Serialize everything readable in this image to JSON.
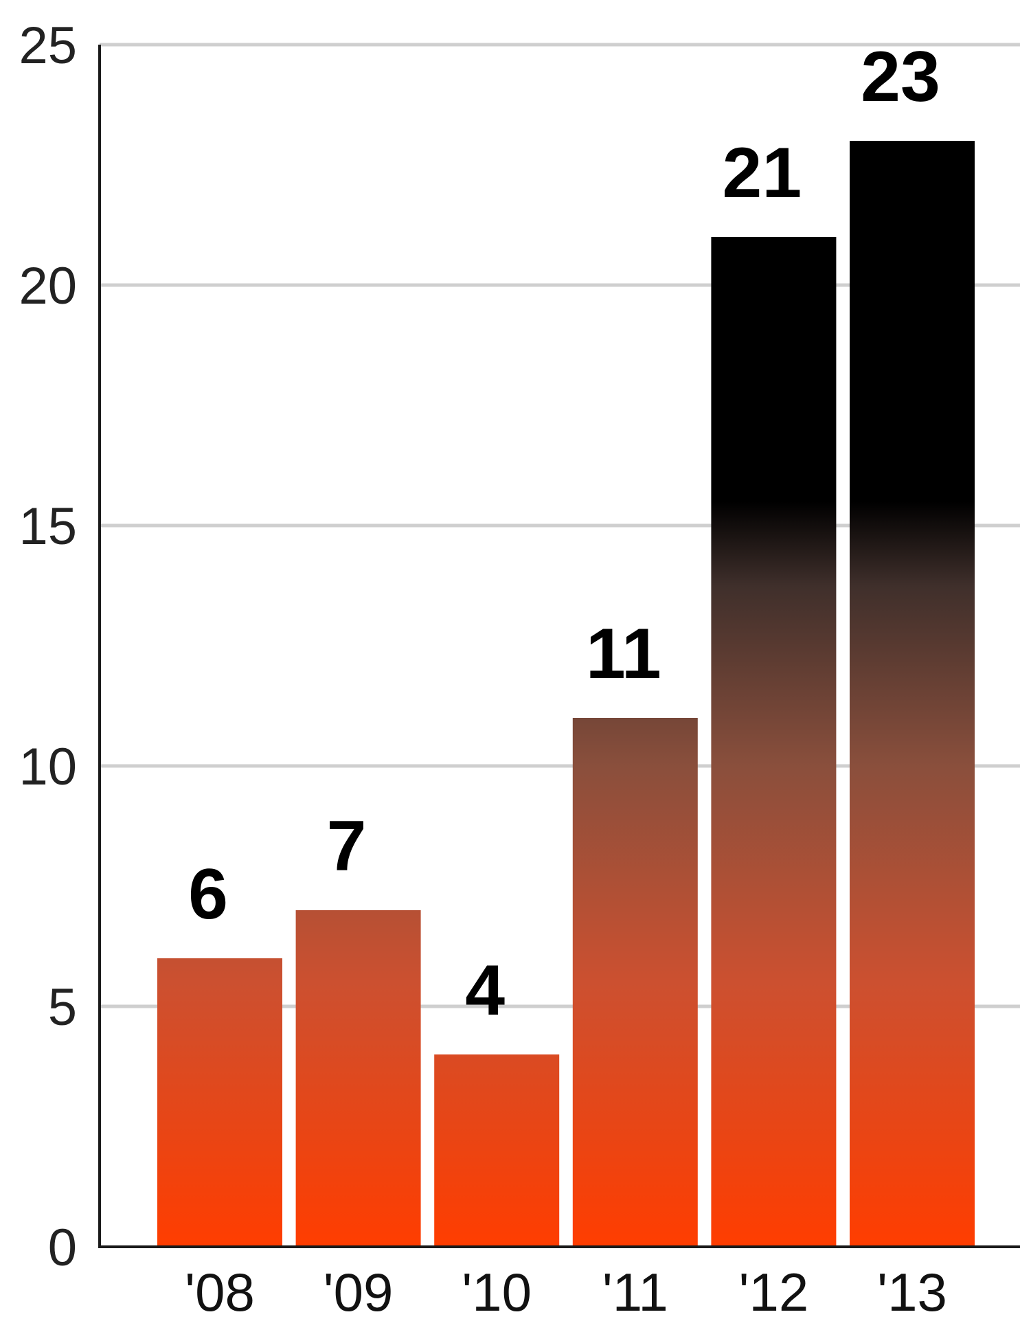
{
  "chart_data": {
    "type": "bar",
    "categories": [
      "'08",
      "'09",
      "'10",
      "'11",
      "'12",
      "'13"
    ],
    "values": [
      6,
      7,
      4,
      11,
      21,
      23
    ],
    "data_labels": [
      "6",
      "7",
      "4",
      "11",
      "21",
      "23"
    ],
    "title": "",
    "xlabel": "",
    "ylabel": "",
    "ylim": [
      0,
      25
    ],
    "yticks": [
      0,
      5,
      10,
      15,
      20,
      25
    ],
    "ytick_labels": [
      "0",
      "5",
      "10",
      "15",
      "20",
      "25"
    ],
    "grid": true,
    "legend": "none",
    "bar_gradient": {
      "bottom": "#ff3d00",
      "middle": "#8a4f3c",
      "top": "#000000"
    }
  }
}
